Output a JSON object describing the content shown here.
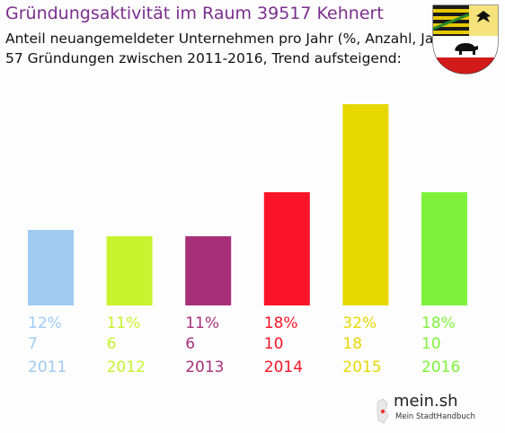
{
  "title": "Gründungsaktivität im Raum 39517 Kehnert",
  "subtitle_line1": "Anteil neuangemeldeter Unternehmen pro Jahr (%, Anzahl, Jahr)",
  "subtitle_line2": "57 Gründungen zwischen 2011-2016, Trend aufsteigend:",
  "logo": {
    "text": "mein.sh",
    "tagline": "Mein StadtHandbuch"
  },
  "crest_icon": "saxony-anhalt-coat-of-arms-icon",
  "colors": {
    "title": "#7b2d8e",
    "bars": [
      "#9fcbf2",
      "#c7f22e",
      "#a8307a",
      "#fb1327",
      "#e6d800",
      "#7ef23a"
    ]
  },
  "chart_data": {
    "type": "bar",
    "title": "Gründungsaktivität im Raum 39517 Kehnert",
    "categories": [
      "2011",
      "2012",
      "2013",
      "2014",
      "2015",
      "2016"
    ],
    "values": [
      12,
      11,
      11,
      18,
      32,
      18
    ],
    "percent_labels": [
      "12%",
      "11%",
      "11%",
      "18%",
      "32%",
      "18%"
    ],
    "counts": [
      "7",
      "6",
      "6",
      "10",
      "18",
      "10"
    ],
    "total": 57,
    "ylim": [
      0,
      32
    ],
    "grid": false,
    "legend": "none"
  }
}
